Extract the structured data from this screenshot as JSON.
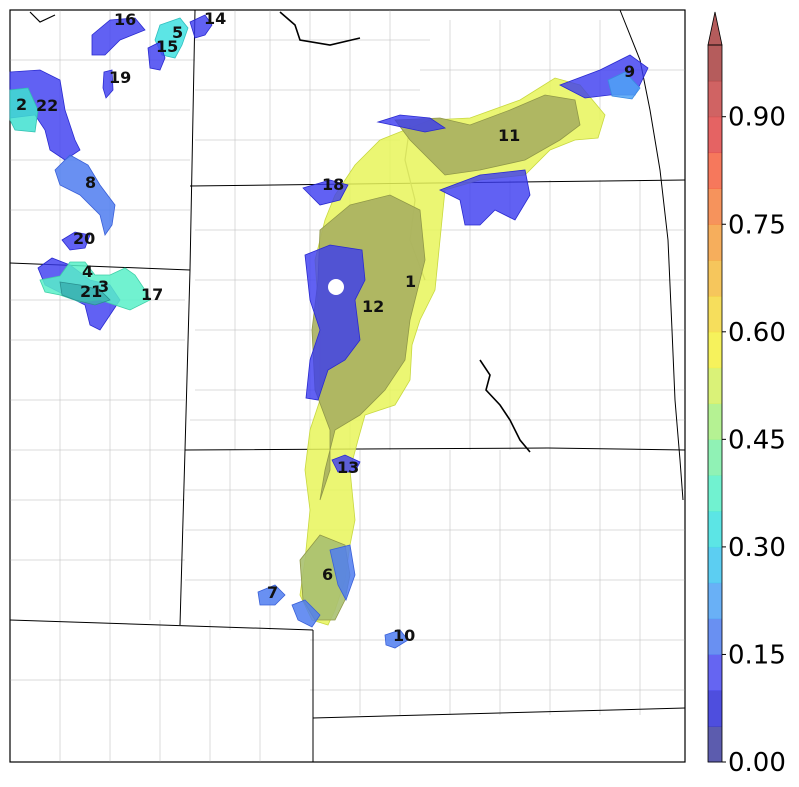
{
  "map": {
    "labels": [
      {
        "id": "1",
        "text": "1"
      },
      {
        "id": "2",
        "text": "2"
      },
      {
        "id": "3",
        "text": "3"
      },
      {
        "id": "4",
        "text": "4"
      },
      {
        "id": "5",
        "text": "5"
      },
      {
        "id": "6",
        "text": "6"
      },
      {
        "id": "7",
        "text": "7"
      },
      {
        "id": "8",
        "text": "8"
      },
      {
        "id": "9",
        "text": "9"
      },
      {
        "id": "10",
        "text": "10"
      },
      {
        "id": "11",
        "text": "11"
      },
      {
        "id": "12",
        "text": "12"
      },
      {
        "id": "13",
        "text": "13"
      },
      {
        "id": "14",
        "text": "14"
      },
      {
        "id": "15",
        "text": "15"
      },
      {
        "id": "16",
        "text": "16"
      },
      {
        "id": "17",
        "text": "17"
      },
      {
        "id": "18",
        "text": "18"
      },
      {
        "id": "19",
        "text": "19"
      },
      {
        "id": "20",
        "text": "20"
      },
      {
        "id": "21",
        "text": "21"
      },
      {
        "id": "22",
        "text": "22"
      }
    ]
  },
  "colorbar": {
    "min": 0.0,
    "max": 1.0,
    "extend": "max",
    "ticks": [
      "0.00",
      "0.15",
      "0.30",
      "0.45",
      "0.60",
      "0.75",
      "0.90"
    ],
    "colors": [
      "#3f3fa0",
      "#2f2fd8",
      "#4a4af0",
      "#4f7cf0",
      "#4fa2f5",
      "#3fc6f0",
      "#3fe0e0",
      "#58f0c8",
      "#7cf0a8",
      "#a8f080",
      "#d4f060",
      "#f5f040",
      "#f5d840",
      "#f5bc40",
      "#f5a040",
      "#f58040",
      "#f56040",
      "#e04848",
      "#c84848",
      "#a84040"
    ]
  }
}
